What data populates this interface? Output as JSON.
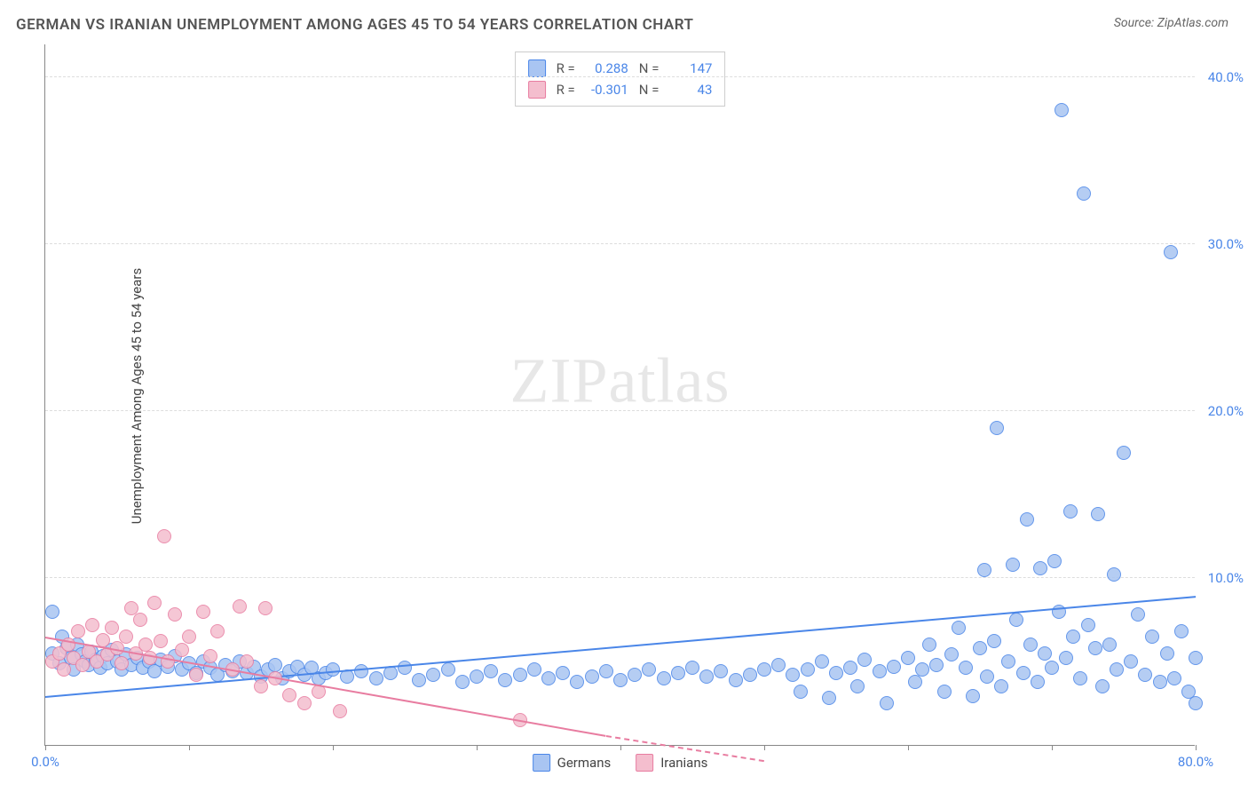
{
  "title": "GERMAN VS IRANIAN UNEMPLOYMENT AMONG AGES 45 TO 54 YEARS CORRELATION CHART",
  "source_prefix": "Source: ",
  "source_name": "ZipAtlas.com",
  "ylabel": "Unemployment Among Ages 45 to 54 years",
  "watermark_a": "ZIP",
  "watermark_b": "atlas",
  "chart": {
    "type": "scatter",
    "xlim": [
      0,
      80
    ],
    "ylim": [
      0,
      42
    ],
    "x_ticks": [
      0,
      10,
      20,
      30,
      40,
      50,
      60,
      70,
      80
    ],
    "x_tick_labels": {
      "0": "0.0%",
      "80": "80.0%"
    },
    "y_ticks": [
      10,
      20,
      30,
      40
    ],
    "y_tick_labels": {
      "10": "10.0%",
      "20": "20.0%",
      "30": "30.0%",
      "40": "40.0%"
    },
    "grid_color": "#dddddd",
    "axis_color": "#888888",
    "background_color": "#ffffff",
    "marker_radius": 8,
    "marker_stroke_width": 1.5,
    "marker_fill_opacity": 0.25,
    "trend_line_width": 2,
    "series": [
      {
        "name": "Germans",
        "color_stroke": "#4a86e8",
        "color_fill": "#a9c5f2",
        "R": "0.288",
        "N": "147",
        "trend": {
          "x1": 0,
          "y1": 2.8,
          "x2": 80,
          "y2": 8.8,
          "dashed": false
        },
        "points": [
          [
            0.5,
            8.0
          ],
          [
            0.5,
            5.5
          ],
          [
            1,
            4.9
          ],
          [
            1.2,
            6.5
          ],
          [
            1.5,
            5.8
          ],
          [
            1.8,
            5.2
          ],
          [
            2,
            4.5
          ],
          [
            2.2,
            6.0
          ],
          [
            2.5,
            5.4
          ],
          [
            2.8,
            5.0
          ],
          [
            3,
            4.8
          ],
          [
            3.2,
            5.6
          ],
          [
            3.5,
            5.1
          ],
          [
            3.8,
            4.6
          ],
          [
            4,
            5.3
          ],
          [
            4.3,
            4.9
          ],
          [
            4.6,
            5.7
          ],
          [
            5,
            5.0
          ],
          [
            5.3,
            4.5
          ],
          [
            5.6,
            5.4
          ],
          [
            6,
            4.8
          ],
          [
            6.4,
            5.2
          ],
          [
            6.8,
            4.6
          ],
          [
            7.2,
            5.0
          ],
          [
            7.6,
            4.4
          ],
          [
            8,
            5.1
          ],
          [
            8.5,
            4.7
          ],
          [
            9,
            5.3
          ],
          [
            9.5,
            4.5
          ],
          [
            10,
            4.9
          ],
          [
            10.5,
            4.3
          ],
          [
            11,
            5.0
          ],
          [
            11.5,
            4.6
          ],
          [
            12,
            4.2
          ],
          [
            12.5,
            4.8
          ],
          [
            13,
            4.4
          ],
          [
            13.5,
            5.0
          ],
          [
            14,
            4.3
          ],
          [
            14.5,
            4.7
          ],
          [
            15,
            4.1
          ],
          [
            15.5,
            4.5
          ],
          [
            16,
            4.8
          ],
          [
            16.5,
            4.0
          ],
          [
            17,
            4.4
          ],
          [
            17.5,
            4.7
          ],
          [
            18,
            4.2
          ],
          [
            18.5,
            4.6
          ],
          [
            19,
            4.0
          ],
          [
            19.5,
            4.3
          ],
          [
            20,
            4.5
          ],
          [
            21,
            4.1
          ],
          [
            22,
            4.4
          ],
          [
            23,
            4.0
          ],
          [
            24,
            4.3
          ],
          [
            25,
            4.6
          ],
          [
            26,
            3.9
          ],
          [
            27,
            4.2
          ],
          [
            28,
            4.5
          ],
          [
            29,
            3.8
          ],
          [
            30,
            4.1
          ],
          [
            31,
            4.4
          ],
          [
            32,
            3.9
          ],
          [
            33,
            4.2
          ],
          [
            34,
            4.5
          ],
          [
            35,
            4.0
          ],
          [
            36,
            4.3
          ],
          [
            37,
            3.8
          ],
          [
            38,
            4.1
          ],
          [
            39,
            4.4
          ],
          [
            40,
            3.9
          ],
          [
            41,
            4.2
          ],
          [
            42,
            4.5
          ],
          [
            43,
            4.0
          ],
          [
            44,
            4.3
          ],
          [
            45,
            4.6
          ],
          [
            46,
            4.1
          ],
          [
            47,
            4.4
          ],
          [
            48,
            3.9
          ],
          [
            49,
            4.2
          ],
          [
            50,
            4.5
          ],
          [
            51,
            4.8
          ],
          [
            52,
            4.2
          ],
          [
            52.5,
            3.2
          ],
          [
            53,
            4.5
          ],
          [
            54,
            5.0
          ],
          [
            54.5,
            2.8
          ],
          [
            55,
            4.3
          ],
          [
            56,
            4.6
          ],
          [
            56.5,
            3.5
          ],
          [
            57,
            5.1
          ],
          [
            58,
            4.4
          ],
          [
            58.5,
            2.5
          ],
          [
            59,
            4.7
          ],
          [
            60,
            5.2
          ],
          [
            60.5,
            3.8
          ],
          [
            61,
            4.5
          ],
          [
            61.5,
            6.0
          ],
          [
            62,
            4.8
          ],
          [
            62.5,
            3.2
          ],
          [
            63,
            5.4
          ],
          [
            63.5,
            7.0
          ],
          [
            64,
            4.6
          ],
          [
            64.5,
            2.9
          ],
          [
            65,
            5.8
          ],
          [
            65.3,
            10.5
          ],
          [
            65.5,
            4.1
          ],
          [
            66,
            6.2
          ],
          [
            66.2,
            19.0
          ],
          [
            66.5,
            3.5
          ],
          [
            67,
            5.0
          ],
          [
            67.3,
            10.8
          ],
          [
            67.5,
            7.5
          ],
          [
            68,
            4.3
          ],
          [
            68.3,
            13.5
          ],
          [
            68.5,
            6.0
          ],
          [
            69,
            3.8
          ],
          [
            69.2,
            10.6
          ],
          [
            69.5,
            5.5
          ],
          [
            70,
            4.6
          ],
          [
            70.2,
            11.0
          ],
          [
            70.5,
            8.0
          ],
          [
            70.7,
            38.0
          ],
          [
            71,
            5.2
          ],
          [
            71.3,
            14.0
          ],
          [
            71.5,
            6.5
          ],
          [
            72,
            4.0
          ],
          [
            72.2,
            33.0
          ],
          [
            72.5,
            7.2
          ],
          [
            73,
            5.8
          ],
          [
            73.2,
            13.8
          ],
          [
            73.5,
            3.5
          ],
          [
            74,
            6.0
          ],
          [
            74.3,
            10.2
          ],
          [
            74.5,
            4.5
          ],
          [
            75,
            17.5
          ],
          [
            75.5,
            5.0
          ],
          [
            76,
            7.8
          ],
          [
            76.5,
            4.2
          ],
          [
            77,
            6.5
          ],
          [
            77.5,
            3.8
          ],
          [
            78,
            5.5
          ],
          [
            78.3,
            29.5
          ],
          [
            78.5,
            4.0
          ],
          [
            79,
            6.8
          ],
          [
            79.5,
            3.2
          ],
          [
            80,
            2.5
          ],
          [
            80,
            5.2
          ]
        ]
      },
      {
        "name": "Iranians",
        "color_stroke": "#e87ca0",
        "color_fill": "#f4bece",
        "R": "-0.301",
        "N": "43",
        "trend": {
          "x1": 0,
          "y1": 6.4,
          "x2": 39,
          "y2": 0.5,
          "dashed": false
        },
        "trend_ext": {
          "x1": 39,
          "y1": 0.5,
          "x2": 50,
          "y2": -1.0,
          "dashed": true
        },
        "points": [
          [
            0.5,
            5.0
          ],
          [
            1,
            5.5
          ],
          [
            1.3,
            4.5
          ],
          [
            1.6,
            6.0
          ],
          [
            2,
            5.2
          ],
          [
            2.3,
            6.8
          ],
          [
            2.6,
            4.8
          ],
          [
            3,
            5.6
          ],
          [
            3.3,
            7.2
          ],
          [
            3.6,
            5.0
          ],
          [
            4,
            6.3
          ],
          [
            4.3,
            5.4
          ],
          [
            4.6,
            7.0
          ],
          [
            5,
            5.8
          ],
          [
            5.3,
            4.9
          ],
          [
            5.6,
            6.5
          ],
          [
            6,
            8.2
          ],
          [
            6.3,
            5.5
          ],
          [
            6.6,
            7.5
          ],
          [
            7,
            6.0
          ],
          [
            7.3,
            5.2
          ],
          [
            7.6,
            8.5
          ],
          [
            8,
            6.2
          ],
          [
            8.3,
            12.5
          ],
          [
            8.5,
            5.0
          ],
          [
            9,
            7.8
          ],
          [
            9.5,
            5.7
          ],
          [
            10,
            6.5
          ],
          [
            10.5,
            4.2
          ],
          [
            11,
            8.0
          ],
          [
            11.5,
            5.3
          ],
          [
            12,
            6.8
          ],
          [
            13,
            4.5
          ],
          [
            13.5,
            8.3
          ],
          [
            14,
            5.0
          ],
          [
            15,
            3.5
          ],
          [
            15.3,
            8.2
          ],
          [
            16,
            4.0
          ],
          [
            17,
            3.0
          ],
          [
            18,
            2.5
          ],
          [
            19,
            3.2
          ],
          [
            20.5,
            2.0
          ],
          [
            33,
            1.5
          ]
        ]
      }
    ]
  },
  "legend": {
    "series1_label": "Germans",
    "series2_label": "Iranians"
  },
  "stats_labels": {
    "R": "R =",
    "N": "N ="
  }
}
